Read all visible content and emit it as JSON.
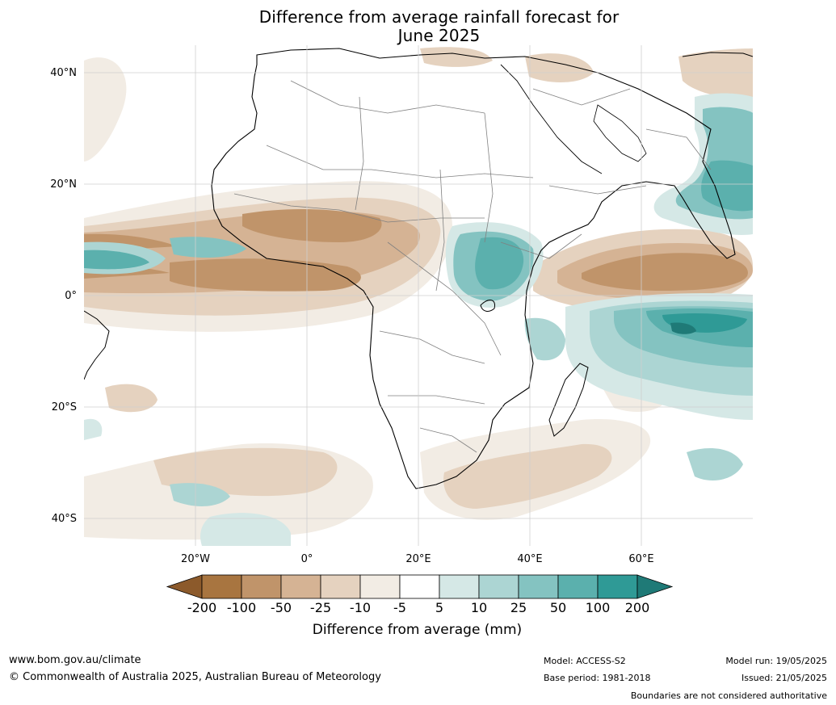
{
  "title_lines": [
    "Difference from average rainfall forecast for",
    "June 2025"
  ],
  "lat_ticks": [
    "40°N",
    "20°N",
    "0°",
    "20°S",
    "40°S"
  ],
  "lon_ticks": [
    "20°W",
    "0°",
    "20°E",
    "40°E",
    "60°E"
  ],
  "colorbar": {
    "labels": [
      "-200",
      "-100",
      "-50",
      "-25",
      "-10",
      "-5",
      "5",
      "10",
      "25",
      "50",
      "100",
      "200"
    ],
    "colors": [
      "#8c5a2b",
      "#a87540",
      "#c0946a",
      "#d5b394",
      "#e5d2bf",
      "#f2ece4",
      "#ffffff",
      "#d5e8e6",
      "#acd5d3",
      "#84c3c1",
      "#5bb0ad",
      "#2f9a96",
      "#1f7a77"
    ],
    "title": "Difference from average (mm)"
  },
  "footer": {
    "url": "www.bom.gov.au/climate",
    "copyright": "© Commonwealth of Australia 2025, Australian Bureau of Meteorology",
    "model": "Model: ACCESS-S2",
    "base_period": "Base period: 1981-2018",
    "model_run": "Model run: 19/05/2025",
    "issued": "Issued: 21/05/2025",
    "disclaimer": "Boundaries are not considered authoritative"
  },
  "map_colors": {
    "land_outline": "#000000",
    "borders": "#808080",
    "grid": "#cfcfcf"
  }
}
